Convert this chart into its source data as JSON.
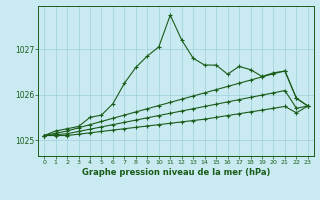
{
  "title": "Graphe pression niveau de la mer (hPa)",
  "bg_color": "#c8eaf0",
  "grid_color": "#9ecfda",
  "line_color": "#1a5c1a",
  "x_labels": [
    "0",
    "1",
    "2",
    "3",
    "4",
    "5",
    "6",
    "7",
    "8",
    "9",
    "10",
    "11",
    "12",
    "13",
    "14",
    "15",
    "16",
    "17",
    "18",
    "19",
    "20",
    "21",
    "22",
    "23"
  ],
  "ylim": [
    1024.65,
    1027.95
  ],
  "yticks": [
    1025,
    1026,
    1027
  ],
  "main_line": [
    1025.1,
    1025.2,
    1025.25,
    1025.3,
    1025.5,
    1025.55,
    1025.8,
    1026.25,
    1026.6,
    1026.85,
    1027.05,
    1027.75,
    1027.2,
    1026.8,
    1026.65,
    1026.65,
    1026.45,
    1026.62,
    1026.55,
    1026.4,
    1026.48,
    1026.52,
    1025.92,
    1025.75
  ],
  "line2": [
    1025.1,
    1025.15,
    1025.2,
    1025.27,
    1025.34,
    1025.41,
    1025.48,
    1025.55,
    1025.62,
    1025.69,
    1025.76,
    1025.83,
    1025.9,
    1025.97,
    1026.04,
    1026.11,
    1026.18,
    1026.25,
    1026.32,
    1026.39,
    1026.46,
    1026.52,
    1025.92,
    1025.75
  ],
  "line3": [
    1025.1,
    1025.12,
    1025.14,
    1025.19,
    1025.24,
    1025.29,
    1025.34,
    1025.39,
    1025.44,
    1025.49,
    1025.54,
    1025.59,
    1025.64,
    1025.69,
    1025.74,
    1025.79,
    1025.84,
    1025.89,
    1025.94,
    1025.99,
    1026.04,
    1026.09,
    1025.7,
    1025.75
  ],
  "line4": [
    1025.1,
    1025.1,
    1025.1,
    1025.13,
    1025.16,
    1025.19,
    1025.22,
    1025.25,
    1025.28,
    1025.31,
    1025.34,
    1025.37,
    1025.4,
    1025.43,
    1025.46,
    1025.5,
    1025.54,
    1025.58,
    1025.62,
    1025.66,
    1025.7,
    1025.74,
    1025.6,
    1025.75
  ],
  "figsize": [
    3.2,
    2.0
  ],
  "dpi": 100
}
